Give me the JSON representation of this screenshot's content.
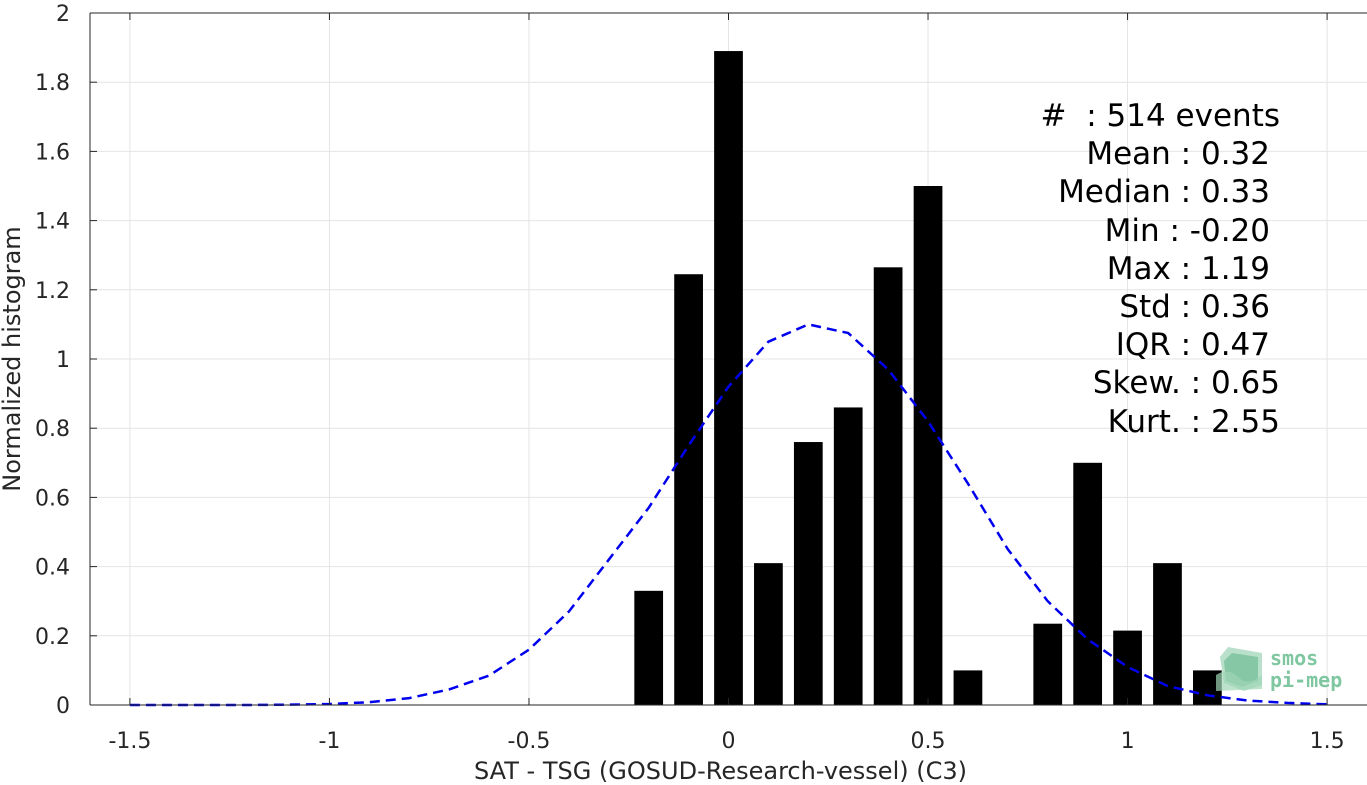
{
  "chart_data": {
    "type": "bar",
    "xlabel": "SAT - TSG (GOSUD-Research-vessel) (C3)",
    "ylabel": "Normalized histogram",
    "xlim": [
      -1.6,
      1.6
    ],
    "ylim": [
      0,
      2
    ],
    "xticks": [
      -1.5,
      -1,
      -0.5,
      0,
      0.5,
      1,
      1.5
    ],
    "xtick_labels": [
      "-1.5",
      "-1",
      "-0.5",
      "0",
      "0.5",
      "1",
      "1.5"
    ],
    "yticks": [
      0,
      0.2,
      0.4,
      0.6,
      0.8,
      1,
      1.2,
      1.4,
      1.6,
      1.8,
      2
    ],
    "ytick_labels": [
      "0",
      "0.2",
      "0.4",
      "0.6",
      "0.8",
      "1",
      "1.2",
      "1.4",
      "1.6",
      "1.8",
      "2"
    ],
    "grid": true,
    "bar_width": 0.072,
    "bars": {
      "x": [
        -0.2,
        -0.1,
        0.0,
        0.1,
        0.2,
        0.3,
        0.4,
        0.5,
        0.6,
        0.8,
        0.9,
        1.0,
        1.1,
        1.2
      ],
      "values": [
        0.33,
        1.245,
        1.89,
        0.41,
        0.76,
        0.86,
        1.265,
        1.5,
        0.1,
        0.235,
        0.7,
        0.215,
        0.41,
        0.1
      ],
      "color": "#000000"
    },
    "series": [
      {
        "style": "dashed",
        "color": "#0000ee",
        "x": [
          -1.5,
          -1.4,
          -1.3,
          -1.2,
          -1.1,
          -1.0,
          -0.9,
          -0.8,
          -0.7,
          -0.6,
          -0.5,
          -0.4,
          -0.3,
          -0.2,
          -0.1,
          0.0,
          0.1,
          0.2,
          0.3,
          0.4,
          0.5,
          0.6,
          0.7,
          0.8,
          0.9,
          1.0,
          1.1,
          1.2,
          1.3,
          1.4,
          1.5
        ],
        "values": [
          0.0,
          0.0,
          0.0,
          0.0,
          0.001,
          0.003,
          0.008,
          0.02,
          0.045,
          0.085,
          0.16,
          0.27,
          0.42,
          0.57,
          0.75,
          0.92,
          1.05,
          1.1,
          1.075,
          0.97,
          0.82,
          0.64,
          0.45,
          0.3,
          0.19,
          0.11,
          0.055,
          0.028,
          0.013,
          0.006,
          0.002
        ]
      }
    ],
    "stats_text": [
      "#  : 514 events",
      "Mean : 0.32",
      "Median : 0.33",
      "Min : -0.20",
      "Max : 1.19",
      "Std : 0.36",
      "IQR : 0.47",
      "Skew. : 0.65",
      "Kurt. : 2.55"
    ]
  },
  "logo": {
    "line1": "smos",
    "line2": "pi-mep",
    "color": "#7fc7a0"
  }
}
